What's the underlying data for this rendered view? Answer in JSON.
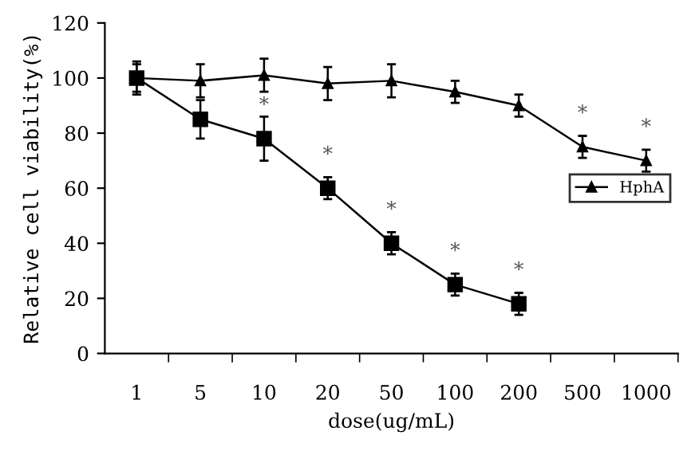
{
  "chart_data": {
    "type": "line",
    "xlabel": "dose(ug/mL)",
    "ylabel": "Relative cell viability(%)",
    "categories": [
      "1",
      "5",
      "10",
      "20",
      "50",
      "100",
      "200",
      "500",
      "1000"
    ],
    "series": [
      {
        "name": "HphA",
        "color": "#000000",
        "marker": "triangle",
        "values": [
          100,
          99,
          101,
          98,
          99,
          95,
          90,
          75,
          70
        ],
        "errors": [
          6,
          6,
          6,
          6,
          6,
          4,
          4,
          4,
          4
        ]
      },
      {
        "color": "#000000",
        "marker": "square",
        "values": [
          100,
          85,
          78,
          60,
          40,
          25,
          18,
          null,
          null
        ],
        "errors": [
          5,
          7,
          8,
          4,
          4,
          4,
          4,
          null,
          null
        ]
      }
    ],
    "annotations": [
      {
        "text": "*",
        "x": "10",
        "y": 78
      },
      {
        "text": "*",
        "x": "20",
        "y": 60
      },
      {
        "text": "*",
        "x": "50",
        "y": 40
      },
      {
        "text": "*",
        "x": "100",
        "y": 25
      },
      {
        "text": "*",
        "x": "200",
        "y": 18
      },
      {
        "text": "*",
        "x": "500",
        "y": 75
      },
      {
        "text": "*",
        "x": "1000",
        "y": 70
      }
    ],
    "ylim": [
      0,
      120
    ],
    "yticks": [
      0,
      20,
      40,
      60,
      80,
      100,
      120
    ],
    "grid": false,
    "legend": "right",
    "line_style": "solid"
  }
}
